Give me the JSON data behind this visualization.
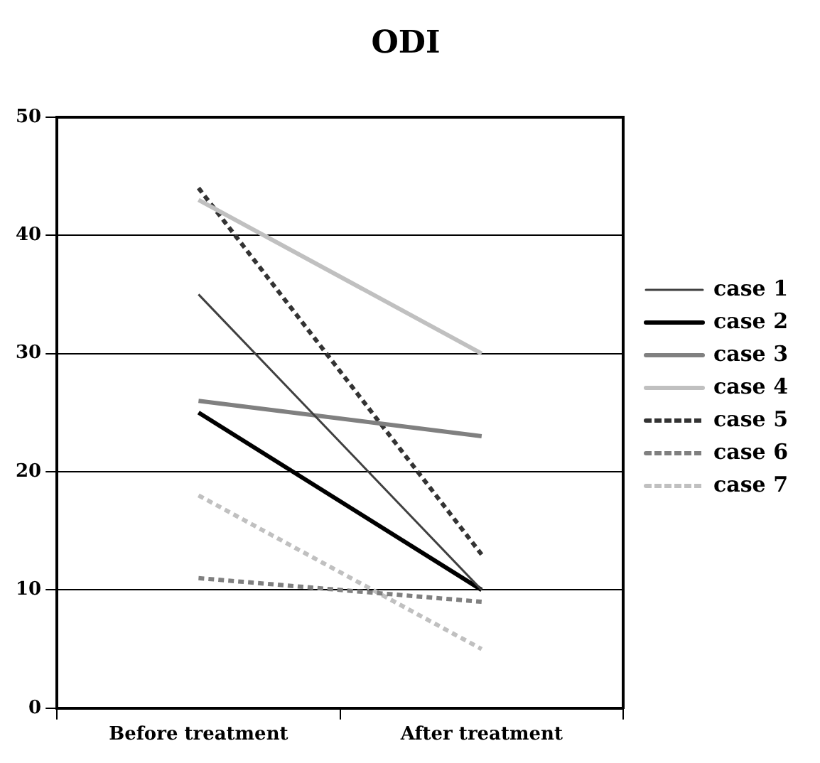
{
  "chart_data": {
    "type": "line",
    "title": "ODI",
    "categories": [
      "Before treatment",
      "After treatment"
    ],
    "series": [
      {
        "name": "case 1",
        "color": "#404040",
        "values": [
          35,
          10
        ],
        "line_style": "solid"
      },
      {
        "name": "case 2",
        "color": "#000000",
        "values": [
          25,
          10
        ],
        "line_style": "solid"
      },
      {
        "name": "case 3",
        "color": "#808080",
        "values": [
          26,
          23
        ],
        "line_style": "solid"
      },
      {
        "name": "case 4",
        "color": "#c0c0c0",
        "values": [
          43,
          30
        ],
        "line_style": "solid"
      },
      {
        "name": "case 5",
        "color": "#333333",
        "values": [
          44,
          13
        ],
        "line_style": "dotted"
      },
      {
        "name": "case 6",
        "color": "#808080",
        "values": [
          11,
          9
        ],
        "line_style": "dotted"
      },
      {
        "name": "case 7",
        "color": "#c0c0c0",
        "values": [
          18,
          5
        ],
        "line_style": "dotted"
      }
    ],
    "ylim": [
      0,
      50
    ],
    "yticks": [
      0,
      10,
      20,
      30,
      40,
      50
    ],
    "grid": "y",
    "legend": "right",
    "marker": "none"
  }
}
